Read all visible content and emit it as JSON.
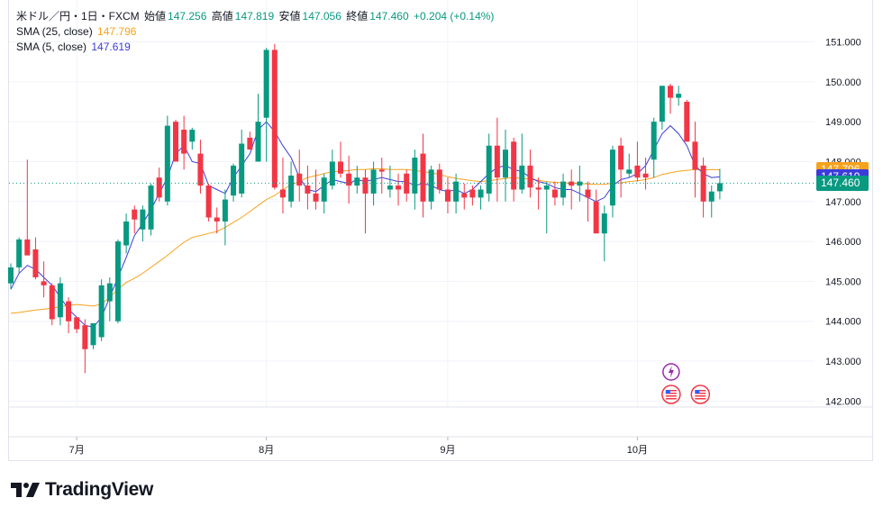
{
  "legend": {
    "symbol": "米ドル／円・1日・FXCM",
    "open_label": "始値",
    "open": "147.256",
    "high_label": "高値",
    "high": "147.819",
    "low_label": "安値",
    "low": "147.056",
    "close_label": "終値",
    "close": "147.460",
    "change": "+0.204 (+0.14%)",
    "sma25_label": "SMA (25, close)",
    "sma25_value": "147.796",
    "sma5_label": "SMA (5, close)",
    "sma5_value": "147.619"
  },
  "price_tags": {
    "sma25": "147.796",
    "sma5": "147.619",
    "last": "147.460"
  },
  "logo": {
    "text": "TradingView"
  },
  "colors": {
    "up": "#089981",
    "down": "#f23645",
    "sma25": "#f7a21b",
    "sma5": "#3c3cdb",
    "grid": "#f0f3fa"
  },
  "chart_data": {
    "type": "candlestick",
    "y_axis": {
      "ticks": [
        "151.000",
        "150.000",
        "149.000",
        "148.000",
        "147.000",
        "146.000",
        "145.000",
        "144.000",
        "143.000",
        "142.000"
      ],
      "ylim": [
        141.85,
        152.05
      ],
      "position": "right"
    },
    "x_axis": {
      "ticks": [
        {
          "label": "7月",
          "index": 8
        },
        {
          "label": "8月",
          "index": 31
        },
        {
          "label": "9月",
          "index": 53
        },
        {
          "label": "10月",
          "index": 76
        }
      ]
    },
    "grid": true,
    "series": [
      {
        "name": "USD/JPY",
        "values": [
          [
            144.95,
            145.45,
            144.8,
            145.35
          ],
          [
            145.35,
            146.1,
            145.2,
            146.05
          ],
          [
            146.05,
            148.05,
            145.8,
            145.65
          ],
          [
            145.8,
            146.1,
            145.05,
            145.1
          ],
          [
            145.0,
            145.5,
            144.6,
            144.9
          ],
          [
            144.9,
            144.95,
            143.9,
            144.05
          ],
          [
            144.1,
            145.1,
            143.9,
            144.95
          ],
          [
            144.5,
            144.6,
            143.7,
            144.0
          ],
          [
            144.1,
            144.1,
            143.7,
            143.8
          ],
          [
            143.9,
            144.05,
            142.7,
            143.3
          ],
          [
            143.4,
            143.95,
            143.3,
            143.95
          ],
          [
            143.6,
            145.05,
            143.5,
            144.9
          ],
          [
            144.5,
            145.1,
            144.0,
            144.95
          ],
          [
            144.0,
            146.05,
            143.95,
            146.0
          ],
          [
            145.9,
            146.7,
            145.7,
            146.5
          ],
          [
            146.8,
            146.9,
            146.2,
            146.55
          ],
          [
            146.3,
            146.9,
            146.0,
            146.8
          ],
          [
            146.3,
            147.45,
            146.15,
            147.4
          ],
          [
            147.6,
            147.85,
            147.0,
            147.1
          ],
          [
            147.0,
            149.15,
            146.9,
            148.9
          ],
          [
            149.0,
            149.05,
            148.0,
            148.0
          ],
          [
            148.8,
            149.15,
            147.8,
            148.2
          ],
          [
            148.5,
            148.85,
            148.3,
            148.8
          ],
          [
            148.2,
            148.55,
            147.2,
            147.4
          ],
          [
            147.4,
            147.45,
            146.5,
            146.6
          ],
          [
            146.6,
            146.85,
            146.2,
            146.5
          ],
          [
            146.5,
            147.3,
            145.9,
            147.05
          ],
          [
            147.15,
            147.95,
            147.0,
            147.9
          ],
          [
            147.2,
            148.8,
            147.1,
            148.45
          ],
          [
            148.6,
            148.75,
            148.3,
            148.3
          ],
          [
            148.0,
            149.7,
            148.0,
            149.0
          ],
          [
            149.1,
            150.85,
            148.0,
            150.8
          ],
          [
            150.8,
            150.95,
            147.3,
            147.35
          ],
          [
            147.3,
            148.1,
            146.7,
            147.1
          ],
          [
            147.0,
            148.0,
            146.85,
            147.65
          ],
          [
            147.7,
            148.3,
            147.0,
            147.4
          ],
          [
            147.4,
            147.9,
            146.8,
            147.2
          ],
          [
            147.2,
            147.8,
            146.8,
            147.0
          ],
          [
            147.0,
            147.7,
            146.7,
            147.6
          ],
          [
            147.4,
            148.3,
            147.3,
            148.0
          ],
          [
            148.0,
            148.5,
            147.6,
            147.7
          ],
          [
            147.7,
            148.15,
            146.95,
            147.4
          ],
          [
            147.4,
            147.9,
            147.2,
            147.6
          ],
          [
            147.6,
            147.8,
            146.2,
            147.2
          ],
          [
            147.2,
            148.0,
            146.9,
            147.8
          ],
          [
            147.8,
            148.1,
            147.2,
            147.75
          ],
          [
            147.3,
            147.9,
            147.1,
            147.4
          ],
          [
            147.4,
            147.7,
            146.9,
            147.3
          ],
          [
            147.7,
            147.8,
            147.0,
            147.2
          ],
          [
            147.2,
            148.3,
            146.8,
            148.1
          ],
          [
            148.2,
            148.7,
            146.6,
            147.0
          ],
          [
            147.0,
            147.9,
            146.8,
            147.8
          ],
          [
            147.8,
            147.95,
            147.2,
            147.3
          ],
          [
            147.3,
            147.6,
            146.7,
            147.0
          ],
          [
            147.0,
            147.7,
            146.7,
            147.5
          ],
          [
            147.2,
            147.45,
            146.8,
            147.1
          ],
          [
            147.3,
            147.4,
            146.9,
            147.1
          ],
          [
            147.1,
            147.4,
            146.8,
            147.3
          ],
          [
            147.2,
            148.7,
            147.0,
            148.4
          ],
          [
            148.4,
            149.1,
            147.0,
            147.6
          ],
          [
            147.6,
            148.8,
            147.0,
            148.3
          ],
          [
            148.5,
            148.6,
            147.0,
            147.3
          ],
          [
            147.3,
            148.7,
            147.2,
            147.9
          ],
          [
            147.9,
            148.3,
            147.1,
            147.35
          ],
          [
            147.35,
            147.6,
            146.8,
            147.3
          ],
          [
            147.3,
            147.5,
            146.2,
            147.4
          ],
          [
            147.3,
            147.5,
            146.9,
            147.1
          ],
          [
            147.1,
            147.7,
            146.9,
            147.5
          ],
          [
            147.5,
            147.8,
            146.8,
            147.4
          ],
          [
            147.4,
            147.9,
            147.0,
            147.5
          ],
          [
            147.3,
            147.5,
            146.5,
            147.1
          ],
          [
            147.0,
            147.3,
            146.3,
            146.2
          ],
          [
            146.2,
            146.9,
            145.5,
            146.7
          ],
          [
            146.9,
            148.4,
            146.6,
            148.3
          ],
          [
            148.4,
            148.6,
            147.1,
            147.8
          ],
          [
            147.7,
            148.2,
            147.6,
            147.8
          ],
          [
            147.9,
            148.5,
            147.5,
            147.6
          ],
          [
            147.7,
            148.1,
            147.3,
            147.6
          ],
          [
            148.05,
            149.1,
            147.6,
            149.0
          ],
          [
            149.0,
            149.9,
            148.8,
            149.9
          ],
          [
            149.9,
            149.95,
            149.2,
            149.6
          ],
          [
            149.6,
            149.9,
            149.4,
            149.7
          ],
          [
            149.5,
            149.55,
            148.5,
            148.5
          ],
          [
            148.5,
            149.0,
            147.1,
            147.8
          ],
          [
            147.9,
            148.1,
            146.6,
            147.0
          ],
          [
            147.0,
            147.4,
            146.6,
            147.25
          ],
          [
            147.256,
            147.819,
            147.056,
            147.46
          ]
        ]
      },
      {
        "name": "SMA (25, close)",
        "values": [
          144.2,
          144.22,
          144.25,
          144.28,
          144.3,
          144.33,
          144.36,
          144.4,
          144.42,
          144.4,
          144.38,
          144.43,
          144.6,
          144.8,
          144.97,
          145.08,
          145.2,
          145.35,
          145.5,
          145.65,
          145.82,
          145.98,
          146.1,
          146.15,
          146.2,
          146.25,
          146.35,
          146.48,
          146.6,
          146.75,
          146.9,
          147.05,
          147.15,
          147.3,
          147.42,
          147.5,
          147.6,
          147.65,
          147.7,
          147.75,
          147.76,
          147.78,
          147.8,
          147.8,
          147.82,
          147.82,
          147.8,
          147.8,
          147.8,
          147.78,
          147.75,
          147.72,
          147.68,
          147.62,
          147.58,
          147.55,
          147.52,
          147.5,
          147.52,
          147.55,
          147.58,
          147.6,
          147.58,
          147.56,
          147.53,
          147.5,
          147.48,
          147.47,
          147.46,
          147.45,
          147.44,
          147.43,
          147.43,
          147.46,
          147.47,
          147.5,
          147.52,
          147.55,
          147.6,
          147.68,
          147.72,
          147.76,
          147.78,
          147.8,
          147.79,
          147.8,
          147.796
        ]
      },
      {
        "name": "SMA (5, close)",
        "values": [
          144.8,
          145.2,
          145.4,
          145.3,
          145.1,
          144.9,
          144.6,
          144.3,
          144.1,
          143.9,
          143.85,
          144.1,
          144.6,
          145.1,
          145.6,
          146.15,
          146.45,
          146.8,
          147.2,
          147.6,
          148.2,
          148.4,
          148.0,
          147.95,
          147.4,
          147.3,
          147.2,
          147.6,
          147.9,
          148.2,
          148.8,
          149.0,
          148.75,
          148.4,
          148.1,
          147.6,
          147.3,
          147.25,
          147.4,
          147.55,
          147.5,
          147.45,
          147.55,
          147.5,
          147.55,
          147.6,
          147.55,
          147.5,
          147.5,
          147.4,
          147.45,
          147.4,
          147.3,
          147.25,
          147.3,
          147.2,
          147.3,
          147.5,
          147.7,
          147.85,
          147.9,
          147.8,
          147.75,
          147.6,
          147.5,
          147.45,
          147.35,
          147.3,
          147.3,
          147.2,
          147.1,
          147.0,
          147.1,
          147.4,
          147.55,
          147.6,
          147.7,
          147.9,
          148.3,
          148.7,
          148.9,
          148.7,
          148.4,
          147.9,
          147.7,
          147.6,
          147.619
        ]
      }
    ],
    "events": [
      {
        "type": "lightning",
        "index": 79
      },
      {
        "type": "us-flag",
        "index": 79
      },
      {
        "type": "us-flag",
        "index": 82
      }
    ]
  }
}
